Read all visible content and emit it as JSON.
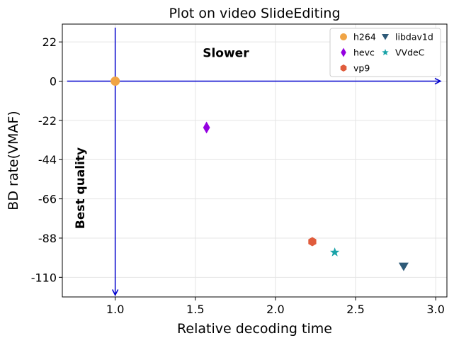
{
  "chart_data": {
    "type": "scatter",
    "title": "Plot on video SlideEditing",
    "xlabel": "Relative decoding time",
    "ylabel": "BD rate(VMAF)",
    "xlim": [
      0.67,
      3.07
    ],
    "ylim": [
      -121,
      32
    ],
    "xticks": [
      1.0,
      1.5,
      2.0,
      2.5,
      3.0
    ],
    "xtick_labels": [
      "1.0",
      "1.5",
      "2.0",
      "2.5",
      "3.0"
    ],
    "yticks": [
      22,
      0,
      -22,
      -44,
      -66,
      -88,
      -110
    ],
    "ytick_labels": [
      "22",
      "0",
      "-22",
      "-44",
      "-66",
      "-88",
      "-110"
    ],
    "grid": true,
    "legend_position": "top-right",
    "series": [
      {
        "name": "h264",
        "marker": "circle",
        "color": "#f0a445",
        "x": 1.0,
        "y": 0.0
      },
      {
        "name": "hevc",
        "marker": "diamond",
        "color": "#9400e0",
        "x": 1.57,
        "y": -26.0
      },
      {
        "name": "vp9",
        "marker": "hexagon",
        "color": "#e05c3c",
        "x": 2.23,
        "y": -90.0
      },
      {
        "name": "libdav1d",
        "marker": "triangle-down",
        "color": "#2e5a78",
        "x": 2.8,
        "y": -104.0
      },
      {
        "name": "VVdeC",
        "marker": "star",
        "color": "#1aa3a8",
        "x": 2.37,
        "y": -96.0
      }
    ],
    "annotations": [
      {
        "text": "Slower",
        "x": 2.0,
        "y": 16,
        "direction": "horizontal"
      },
      {
        "text": "Best quality",
        "x": 0.78,
        "y": -60,
        "direction": "vertical"
      }
    ],
    "arrows": [
      {
        "from": [
          0.7,
          0
        ],
        "to": [
          3.03,
          0
        ],
        "color": "#0000cc"
      },
      {
        "from": [
          1.0,
          30
        ],
        "to": [
          1.0,
          -120
        ],
        "color": "#0000cc"
      }
    ]
  }
}
